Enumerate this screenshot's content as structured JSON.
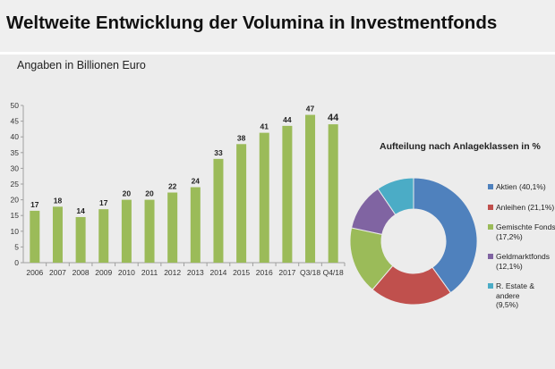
{
  "header": {
    "title": "Weltweite Entwicklung der Volumina in Investmentfonds"
  },
  "subtitle": "Angaben in Billionen Euro",
  "colors": {
    "bar": "#9bbb59",
    "axis": "#a0a0a0",
    "grid": "#cfcfcf"
  },
  "chart_data": [
    {
      "type": "bar",
      "categories": [
        "2006",
        "2007",
        "2008",
        "2009",
        "2010",
        "2011",
        "2012",
        "2013",
        "2014",
        "2015",
        "2016",
        "2017",
        "Q3/18",
        "Q4/18"
      ],
      "values": [
        16.5,
        17.8,
        14.5,
        17,
        20,
        20,
        22.3,
        24,
        33,
        37.7,
        41.3,
        43.5,
        47,
        44
      ],
      "data_labels": [
        "17",
        "18",
        "14",
        "17",
        "20",
        "20",
        "22",
        "24",
        "33",
        "38",
        "41",
        "44",
        "47",
        "44"
      ],
      "yticks": [
        "0",
        "5",
        "10",
        "15",
        "20",
        "25",
        "30",
        "35",
        "40",
        "45",
        "50"
      ],
      "ylim": [
        0,
        50
      ],
      "title": "",
      "xlabel": "",
      "ylabel": "",
      "grid": false
    },
    {
      "type": "pie",
      "title": "Aufteilung nach Anlageklassen in %",
      "legend_position": "right",
      "slices": [
        {
          "label": "Aktien (40,1%)",
          "value": 40.1,
          "color": "#4f81bd"
        },
        {
          "label": "Anleihen (21,1%)",
          "value": 21.1,
          "color": "#c0504d"
        },
        {
          "label": "Gemischte Fonds\n(17,2%)",
          "value": 17.2,
          "color": "#9bbb59"
        },
        {
          "label": "Geldmarktfonds\n(12,1%)",
          "value": 12.1,
          "color": "#8064a2"
        },
        {
          "label": "R. Estate & andere\n(9,5%)",
          "value": 9.5,
          "color": "#4bacc6"
        }
      ]
    }
  ]
}
